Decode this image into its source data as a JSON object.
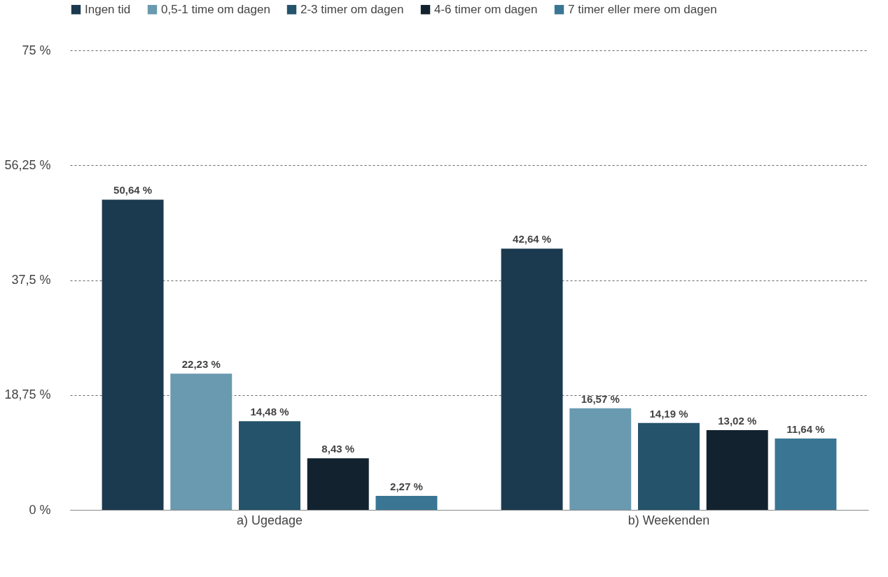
{
  "chart_data": {
    "type": "bar",
    "categories": [
      "a) Ugedage",
      "b) Weekenden"
    ],
    "series": [
      {
        "name": "Ingen tid",
        "color": "#1b3a4f",
        "values": [
          50.64,
          42.64
        ],
        "value_labels": [
          "50,64 %",
          "42,64 %"
        ]
      },
      {
        "name": "0,5-1 time om dagen",
        "color": "#6a9ab0",
        "values": [
          22.23,
          16.57
        ],
        "value_labels": [
          "22,23 %",
          "16,57 %"
        ]
      },
      {
        "name": "2-3 timer om dagen",
        "color": "#24536b",
        "values": [
          14.48,
          14.19
        ],
        "value_labels": [
          "14,48 %",
          "14,19 %"
        ]
      },
      {
        "name": "4-6 timer om dagen",
        "color": "#12232f",
        "values": [
          8.43,
          13.02
        ],
        "value_labels": [
          "8,43 %",
          "13,02 %"
        ]
      },
      {
        "name": "7 timer eller mere om dagen",
        "color": "#3a7694",
        "values": [
          2.27,
          11.64
        ],
        "value_labels": [
          "2,27 %",
          "11,64 %"
        ]
      }
    ],
    "ylim": [
      0,
      75
    ],
    "yticks": [
      {
        "value": 0,
        "label": "0 %"
      },
      {
        "value": 18.75,
        "label": "18,75 %"
      },
      {
        "value": 37.5,
        "label": "37,5 %"
      },
      {
        "value": 56.25,
        "label": "56,25 %"
      },
      {
        "value": 75,
        "label": "75 %"
      }
    ],
    "grid": "y",
    "legend": "top"
  }
}
